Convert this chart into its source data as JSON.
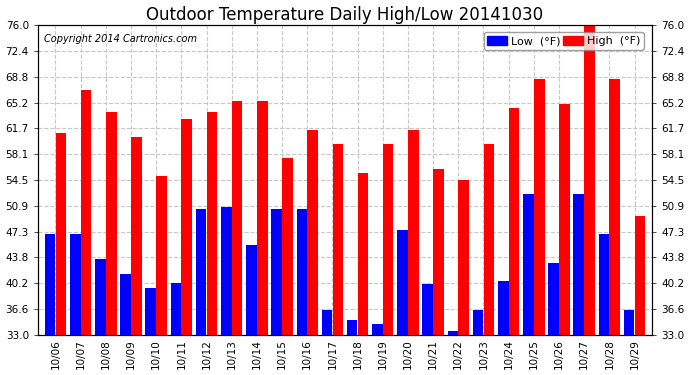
{
  "title": "Outdoor Temperature Daily High/Low 20141030",
  "copyright": "Copyright 2014 Cartronics.com",
  "categories": [
    "10/06",
    "10/07",
    "10/08",
    "10/09",
    "10/10",
    "10/11",
    "10/12",
    "10/13",
    "10/14",
    "10/15",
    "10/16",
    "10/17",
    "10/18",
    "10/19",
    "10/20",
    "10/21",
    "10/22",
    "10/23",
    "10/24",
    "10/25",
    "10/26",
    "10/27",
    "10/28",
    "10/29"
  ],
  "high_values": [
    61.0,
    67.0,
    64.0,
    60.5,
    55.0,
    63.0,
    64.0,
    65.5,
    65.5,
    57.5,
    61.5,
    59.5,
    55.5,
    59.5,
    61.5,
    56.0,
    54.5,
    59.5,
    64.5,
    68.5,
    65.0,
    76.0,
    68.5,
    49.5
  ],
  "low_values": [
    47.0,
    47.0,
    43.5,
    41.5,
    39.5,
    40.2,
    50.5,
    50.8,
    45.5,
    50.5,
    50.5,
    36.5,
    35.0,
    34.5,
    47.5,
    40.0,
    33.5,
    36.5,
    40.5,
    52.5,
    43.0,
    52.5,
    47.0,
    36.5
  ],
  "high_color": "#ff0000",
  "low_color": "#0000ff",
  "bg_color": "#ffffff",
  "grid_color": "#c8c8c8",
  "ymin": 33.0,
  "ymax": 76.0,
  "yticks": [
    33.0,
    36.6,
    40.2,
    43.8,
    47.3,
    50.9,
    54.5,
    58.1,
    61.7,
    65.2,
    68.8,
    72.4,
    76.0
  ],
  "title_fontsize": 12,
  "tick_fontsize": 7.5,
  "copyright_fontsize": 7
}
